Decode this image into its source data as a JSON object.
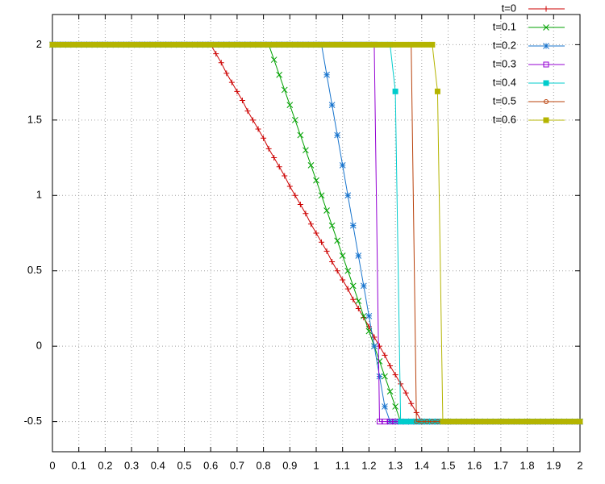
{
  "chart_data": {
    "type": "line",
    "xlim": [
      0,
      2
    ],
    "ylim": [
      -0.7,
      2.2
    ],
    "xticks": [
      0,
      0.1,
      0.2,
      0.3,
      0.4,
      0.5,
      0.6,
      0.7,
      0.8,
      0.9,
      1,
      1.1,
      1.2,
      1.3,
      1.4,
      1.5,
      1.6,
      1.7,
      1.8,
      1.9,
      2
    ],
    "yticks": [
      -0.5,
      0,
      0.5,
      1,
      1.5,
      2
    ],
    "grid": true,
    "legend": "top-right",
    "x": [
      0,
      0.02,
      0.04,
      0.06,
      0.08,
      0.1,
      0.12,
      0.14,
      0.16,
      0.18,
      0.2,
      0.22,
      0.24,
      0.26,
      0.28,
      0.3,
      0.32,
      0.34,
      0.36,
      0.38,
      0.4,
      0.42,
      0.44,
      0.46,
      0.48,
      0.5,
      0.52,
      0.54,
      0.56,
      0.58,
      0.6,
      0.62,
      0.64,
      0.66,
      0.68,
      0.7,
      0.72,
      0.74,
      0.76,
      0.78,
      0.8,
      0.82,
      0.84,
      0.86,
      0.88,
      0.9,
      0.92,
      0.94,
      0.96,
      0.98,
      1,
      1.02,
      1.04,
      1.06,
      1.08,
      1.1,
      1.12,
      1.14,
      1.16,
      1.18,
      1.2,
      1.22,
      1.24,
      1.26,
      1.28,
      1.3,
      1.32,
      1.34,
      1.36,
      1.38,
      1.4,
      1.42,
      1.44,
      1.46,
      1.48,
      1.5,
      1.52,
      1.54,
      1.56,
      1.58,
      1.6,
      1.62,
      1.64,
      1.66,
      1.68,
      1.7,
      1.72,
      1.74,
      1.76,
      1.78,
      1.8,
      1.82,
      1.84,
      1.86,
      1.88,
      1.9,
      1.92,
      1.94,
      1.96,
      1.98,
      2
    ],
    "series": [
      {
        "name": "t=0",
        "color": "#cc0000",
        "marker": "plus",
        "values": [
          2,
          2,
          2,
          2,
          2,
          2,
          2,
          2,
          2,
          2,
          2,
          2,
          2,
          2,
          2,
          2,
          2,
          2,
          2,
          2,
          2,
          2,
          2,
          2,
          2,
          2,
          2,
          2,
          2,
          2,
          2,
          1.94,
          1.88,
          1.81,
          1.75,
          1.69,
          1.63,
          1.56,
          1.5,
          1.44,
          1.38,
          1.31,
          1.25,
          1.19,
          1.13,
          1.06,
          1,
          0.94,
          0.88,
          0.81,
          0.75,
          0.69,
          0.63,
          0.56,
          0.5,
          0.44,
          0.38,
          0.31,
          0.25,
          0.19,
          0.13,
          0.06,
          0,
          -0.06,
          -0.13,
          -0.19,
          -0.25,
          -0.31,
          -0.38,
          -0.44,
          -0.5,
          -0.5,
          -0.5,
          -0.5,
          -0.5,
          -0.5,
          -0.5,
          -0.5,
          -0.5,
          -0.5,
          -0.5,
          -0.5,
          -0.5,
          -0.5,
          -0.5,
          -0.5,
          -0.5,
          -0.5,
          -0.5,
          -0.5,
          -0.5,
          -0.5,
          -0.5,
          -0.5,
          -0.5,
          -0.5,
          -0.5,
          -0.5,
          -0.5,
          -0.5,
          -0.5
        ]
      },
      {
        "name": "t=0.1",
        "color": "#00a000",
        "marker": "cross",
        "values": [
          2,
          2,
          2,
          2,
          2,
          2,
          2,
          2,
          2,
          2,
          2,
          2,
          2,
          2,
          2,
          2,
          2,
          2,
          2,
          2,
          2,
          2,
          2,
          2,
          2,
          2,
          2,
          2,
          2,
          2,
          2,
          2,
          2,
          2,
          2,
          2,
          2,
          2,
          2,
          2,
          2,
          2,
          1.9,
          1.8,
          1.7,
          1.6,
          1.5,
          1.4,
          1.3,
          1.2,
          1.1,
          1,
          0.9,
          0.8,
          0.7,
          0.6,
          0.5,
          0.4,
          0.3,
          0.2,
          0.1,
          0,
          -0.1,
          -0.2,
          -0.3,
          -0.4,
          -0.5,
          -0.5,
          -0.5,
          -0.5,
          -0.5,
          -0.5,
          -0.5,
          -0.5,
          -0.5,
          -0.5,
          -0.5,
          -0.5,
          -0.5,
          -0.5,
          -0.5,
          -0.5,
          -0.5,
          -0.5,
          -0.5,
          -0.5,
          -0.5,
          -0.5,
          -0.5,
          -0.5,
          -0.5,
          -0.5,
          -0.5,
          -0.5,
          -0.5,
          -0.5,
          -0.5,
          -0.5,
          -0.5,
          -0.5,
          -0.5
        ]
      },
      {
        "name": "t=0.2",
        "color": "#1874cd",
        "marker": "star",
        "values": [
          2,
          2,
          2,
          2,
          2,
          2,
          2,
          2,
          2,
          2,
          2,
          2,
          2,
          2,
          2,
          2,
          2,
          2,
          2,
          2,
          2,
          2,
          2,
          2,
          2,
          2,
          2,
          2,
          2,
          2,
          2,
          2,
          2,
          2,
          2,
          2,
          2,
          2,
          2,
          2,
          2,
          2,
          2,
          2,
          2,
          2,
          2,
          2,
          2,
          2,
          2,
          2,
          1.8,
          1.6,
          1.4,
          1.2,
          1,
          0.8,
          0.6,
          0.4,
          0.2,
          0,
          -0.2,
          -0.4,
          -0.5,
          -0.5,
          -0.5,
          -0.5,
          -0.5,
          -0.5,
          -0.5,
          -0.5,
          -0.5,
          -0.5,
          -0.5,
          -0.5,
          -0.5,
          -0.5,
          -0.5,
          -0.5,
          -0.5,
          -0.5,
          -0.5,
          -0.5,
          -0.5,
          -0.5,
          -0.5,
          -0.5,
          -0.5,
          -0.5,
          -0.5,
          -0.5,
          -0.5,
          -0.5,
          -0.5,
          -0.5,
          -0.5,
          -0.5,
          -0.5,
          -0.5,
          -0.5
        ]
      },
      {
        "name": "t=0.3",
        "color": "#9400d3",
        "marker": "square",
        "values": [
          2,
          2,
          2,
          2,
          2,
          2,
          2,
          2,
          2,
          2,
          2,
          2,
          2,
          2,
          2,
          2,
          2,
          2,
          2,
          2,
          2,
          2,
          2,
          2,
          2,
          2,
          2,
          2,
          2,
          2,
          2,
          2,
          2,
          2,
          2,
          2,
          2,
          2,
          2,
          2,
          2,
          2,
          2,
          2,
          2,
          2,
          2,
          2,
          2,
          2,
          2,
          2,
          2,
          2,
          2,
          2,
          2,
          2,
          2,
          2,
          2,
          2,
          -0.5,
          -0.5,
          -0.5,
          -0.5,
          -0.5,
          -0.5,
          -0.5,
          -0.5,
          -0.5,
          -0.5,
          -0.5,
          -0.5,
          -0.5,
          -0.5,
          -0.5,
          -0.5,
          -0.5,
          -0.5,
          -0.5,
          -0.5,
          -0.5,
          -0.5,
          -0.5,
          -0.5,
          -0.5,
          -0.5,
          -0.5,
          -0.5,
          -0.5,
          -0.5,
          -0.5,
          -0.5,
          -0.5,
          -0.5,
          -0.5,
          -0.5,
          -0.5,
          -0.5,
          -0.5
        ]
      },
      {
        "name": "t=0.4",
        "color": "#00cccc",
        "marker": "filled-square",
        "values": [
          2,
          2,
          2,
          2,
          2,
          2,
          2,
          2,
          2,
          2,
          2,
          2,
          2,
          2,
          2,
          2,
          2,
          2,
          2,
          2,
          2,
          2,
          2,
          2,
          2,
          2,
          2,
          2,
          2,
          2,
          2,
          2,
          2,
          2,
          2,
          2,
          2,
          2,
          2,
          2,
          2,
          2,
          2,
          2,
          2,
          2,
          2,
          2,
          2,
          2,
          2,
          2,
          2,
          2,
          2,
          2,
          2,
          2,
          2,
          2,
          2,
          2,
          2,
          2,
          2,
          1.69,
          -0.5,
          -0.5,
          -0.5,
          -0.5,
          -0.5,
          -0.5,
          -0.5,
          -0.5,
          -0.5,
          -0.5,
          -0.5,
          -0.5,
          -0.5,
          -0.5,
          -0.5,
          -0.5,
          -0.5,
          -0.5,
          -0.5,
          -0.5,
          -0.5,
          -0.5,
          -0.5,
          -0.5,
          -0.5,
          -0.5,
          -0.5,
          -0.5,
          -0.5,
          -0.5,
          -0.5,
          -0.5,
          -0.5,
          -0.5,
          -0.5
        ]
      },
      {
        "name": "t=0.5",
        "color": "#b8400a",
        "marker": "circle",
        "values": [
          2,
          2,
          2,
          2,
          2,
          2,
          2,
          2,
          2,
          2,
          2,
          2,
          2,
          2,
          2,
          2,
          2,
          2,
          2,
          2,
          2,
          2,
          2,
          2,
          2,
          2,
          2,
          2,
          2,
          2,
          2,
          2,
          2,
          2,
          2,
          2,
          2,
          2,
          2,
          2,
          2,
          2,
          2,
          2,
          2,
          2,
          2,
          2,
          2,
          2,
          2,
          2,
          2,
          2,
          2,
          2,
          2,
          2,
          2,
          2,
          2,
          2,
          2,
          2,
          2,
          2,
          2,
          2,
          2,
          -0.5,
          -0.5,
          -0.5,
          -0.5,
          -0.5,
          -0.5,
          -0.5,
          -0.5,
          -0.5,
          -0.5,
          -0.5,
          -0.5,
          -0.5,
          -0.5,
          -0.5,
          -0.5,
          -0.5,
          -0.5,
          -0.5,
          -0.5,
          -0.5,
          -0.5,
          -0.5,
          -0.5,
          -0.5,
          -0.5,
          -0.5,
          -0.5,
          -0.5,
          -0.5,
          -0.5,
          -0.5
        ]
      },
      {
        "name": "t=0.6",
        "color": "#b4b400",
        "marker": "filled-square",
        "values": [
          2,
          2,
          2,
          2,
          2,
          2,
          2,
          2,
          2,
          2,
          2,
          2,
          2,
          2,
          2,
          2,
          2,
          2,
          2,
          2,
          2,
          2,
          2,
          2,
          2,
          2,
          2,
          2,
          2,
          2,
          2,
          2,
          2,
          2,
          2,
          2,
          2,
          2,
          2,
          2,
          2,
          2,
          2,
          2,
          2,
          2,
          2,
          2,
          2,
          2,
          2,
          2,
          2,
          2,
          2,
          2,
          2,
          2,
          2,
          2,
          2,
          2,
          2,
          2,
          2,
          2,
          2,
          2,
          2,
          2,
          2,
          2,
          2,
          1.69,
          -0.5,
          -0.5,
          -0.5,
          -0.5,
          -0.5,
          -0.5,
          -0.5,
          -0.5,
          -0.5,
          -0.5,
          -0.5,
          -0.5,
          -0.5,
          -0.5,
          -0.5,
          -0.5,
          -0.5,
          -0.5,
          -0.5,
          -0.5,
          -0.5,
          -0.5,
          -0.5,
          -0.5,
          -0.5,
          -0.5,
          -0.5
        ]
      }
    ]
  }
}
